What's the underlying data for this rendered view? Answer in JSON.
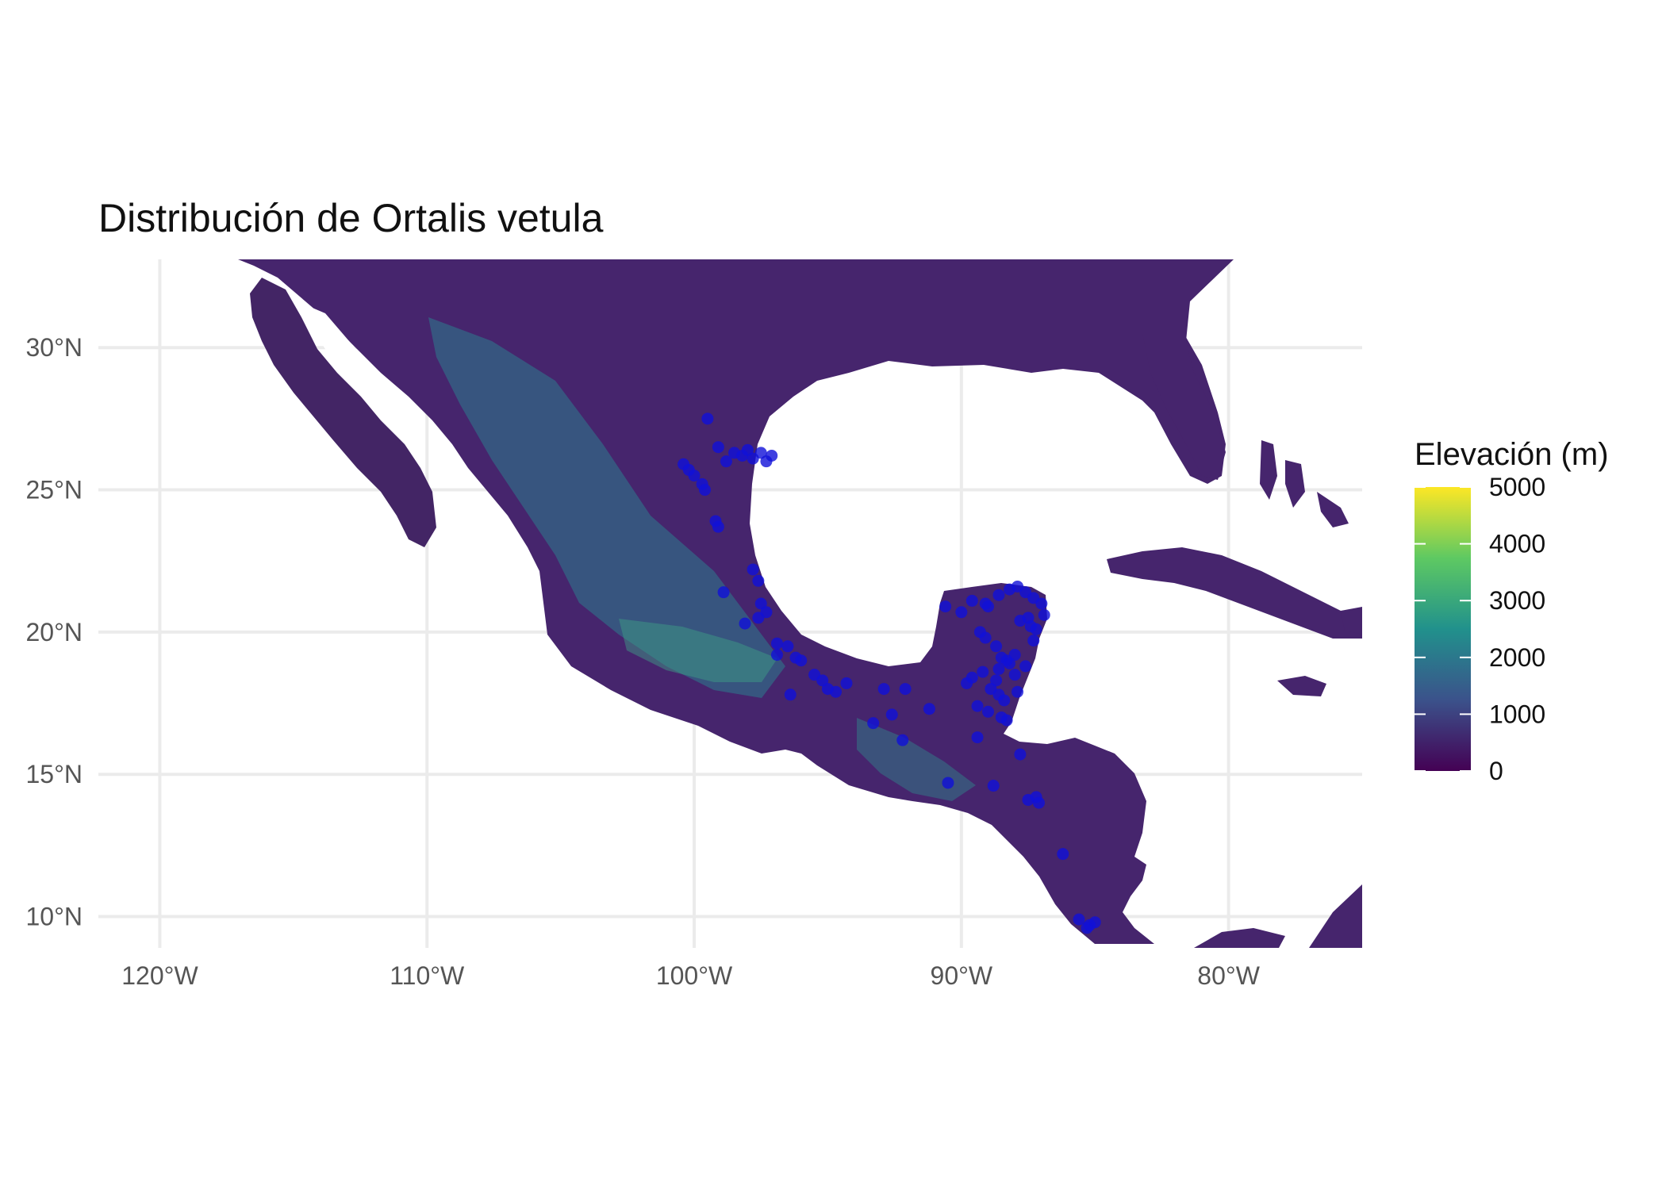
{
  "title": "Distribución de Ortalis vetula",
  "chart_data": {
    "type": "scatter",
    "title": "Distribución de Ortalis vetula",
    "xlim": [
      -122.3,
      -75.0
    ],
    "ylim": [
      8.9,
      33.1
    ],
    "x_ticks": [
      {
        "value": -120,
        "label": "120°W"
      },
      {
        "value": -110,
        "label": "110°W"
      },
      {
        "value": -100,
        "label": "100°W"
      },
      {
        "value": -90,
        "label": "90°W"
      },
      {
        "value": -80,
        "label": "80°W"
      }
    ],
    "y_ticks": [
      {
        "value": 30,
        "label": "30°N"
      },
      {
        "value": 25,
        "label": "25°N"
      },
      {
        "value": 20,
        "label": "20°N"
      },
      {
        "value": 15,
        "label": "15°N"
      },
      {
        "value": 10,
        "label": "10°N"
      }
    ],
    "grid": true,
    "legend": {
      "title": "Elevación (m)",
      "placement": "right",
      "range": [
        0,
        5000
      ],
      "labels": [
        "5000",
        "4000",
        "3000",
        "2000",
        "1000",
        "0"
      ],
      "colors": [
        "#440154",
        "#3b528b",
        "#21918c",
        "#5ec962",
        "#fde725"
      ]
    },
    "point_color": "#1010d8",
    "series": [
      {
        "x": [
          -99.5,
          -99.1,
          -98.5,
          -98.2,
          -98.0,
          -97.8,
          -97.5,
          -97.3,
          -97.1,
          -98.8,
          -100.4,
          -100.2,
          -100.0,
          -99.7,
          -99.6,
          -99.2,
          -99.1,
          -97.8,
          -97.6,
          -98.9,
          -97.5,
          -97.3,
          -97.6,
          -98.1,
          -96.9,
          -96.5,
          -96.9,
          -96.2,
          -96.0,
          -95.5,
          -95.2,
          -95.0,
          -94.3,
          -96.4,
          -94.7,
          -92.9,
          -93.3,
          -92.2,
          -92.6,
          -92.1,
          -91.2,
          -90.6,
          -90.0,
          -89.6,
          -89.0,
          -89.1,
          -88.6,
          -88.2,
          -87.9,
          -87.6,
          -87.3,
          -87.0,
          -86.9,
          -87.5,
          -87.4,
          -87.2,
          -87.8,
          -87.3,
          -88.0,
          -88.3,
          -88.6,
          -89.2,
          -88.7,
          -88.0,
          -87.6,
          -87.9,
          -88.4,
          -88.6,
          -88.9,
          -89.6,
          -89.8,
          -89.4,
          -89.0,
          -88.5,
          -88.3,
          -89.4,
          -87.8,
          -87.5,
          -88.8,
          -90.5,
          -87.2,
          -87.1,
          -86.2,
          -85.6,
          -85.0,
          -85.3,
          -85.2,
          -89.3,
          -89.1,
          -88.7,
          -88.5,
          -88.2
        ],
        "y": [
          27.5,
          26.5,
          26.3,
          26.2,
          26.4,
          26.1,
          26.3,
          26.0,
          26.2,
          26.0,
          25.9,
          25.7,
          25.5,
          25.2,
          25.0,
          23.9,
          23.7,
          22.2,
          21.8,
          21.4,
          21.0,
          20.7,
          20.5,
          20.3,
          19.6,
          19.5,
          19.2,
          19.1,
          19.0,
          18.5,
          18.3,
          18.0,
          18.2,
          17.8,
          17.9,
          18.0,
          16.8,
          16.2,
          17.1,
          18.0,
          17.3,
          20.9,
          20.7,
          21.1,
          20.9,
          21.0,
          21.3,
          21.5,
          21.6,
          21.4,
          21.2,
          21.0,
          20.6,
          20.5,
          20.2,
          20.1,
          20.4,
          19.7,
          19.2,
          19.0,
          18.7,
          18.6,
          18.3,
          18.5,
          18.8,
          17.9,
          17.6,
          17.8,
          18.0,
          18.4,
          18.2,
          17.4,
          17.2,
          17.0,
          16.9,
          16.3,
          15.7,
          14.1,
          14.6,
          14.7,
          14.2,
          14.0,
          12.2,
          9.9,
          9.8,
          9.6,
          9.7,
          20.0,
          19.8,
          19.5,
          19.1,
          18.9
        ]
      }
    ]
  }
}
